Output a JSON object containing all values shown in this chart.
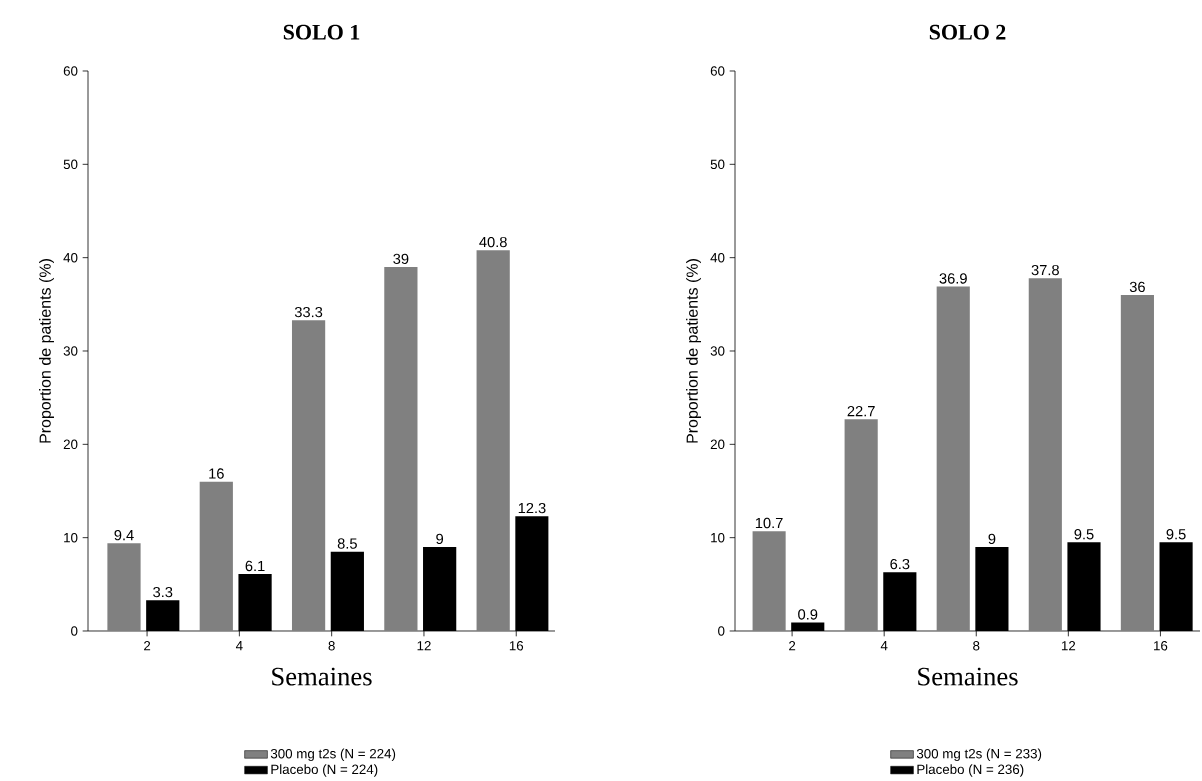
{
  "chart_data": [
    {
      "type": "bar",
      "title": "SOLO 1",
      "xlabel": "Semaines",
      "ylabel": "Proportion de patients (%)",
      "categories": [
        "2",
        "4",
        "8",
        "12",
        "16"
      ],
      "series": [
        {
          "name": "300 mg t2s (N = 224)",
          "color": "#808080",
          "values": [
            9.4,
            16,
            33.3,
            39,
            40.8
          ]
        },
        {
          "name": "Placebo (N = 224)",
          "color": "#000000",
          "values": [
            3.3,
            6.1,
            8.5,
            9,
            12.3
          ]
        }
      ],
      "ylim": [
        0,
        60
      ],
      "yticks": [
        0,
        10,
        20,
        30,
        40,
        50,
        60
      ],
      "data_labels": true,
      "legend": "bottom",
      "grid": false
    },
    {
      "type": "bar",
      "title": "SOLO 2",
      "xlabel": "Semaines",
      "ylabel": "Proportion de patients (%)",
      "categories": [
        "2",
        "4",
        "8",
        "12",
        "16"
      ],
      "series": [
        {
          "name": "300 mg t2s (N = 233)",
          "color": "#808080",
          "values": [
            10.7,
            22.7,
            36.9,
            37.8,
            36
          ]
        },
        {
          "name": "Placebo (N = 236)",
          "color": "#000000",
          "values": [
            0.9,
            6.3,
            9,
            9.5,
            9.5
          ]
        }
      ],
      "ylim": [
        0,
        60
      ],
      "yticks": [
        0,
        10,
        20,
        30,
        40,
        50,
        60
      ],
      "data_labels": true,
      "legend": "bottom",
      "grid": false
    }
  ]
}
